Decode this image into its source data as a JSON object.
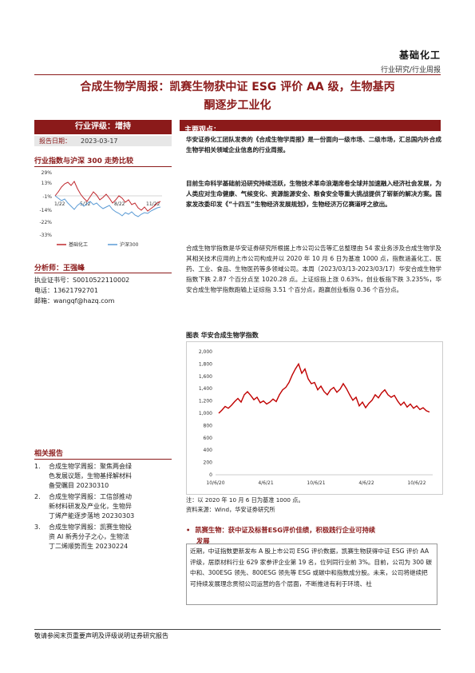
{
  "header": {
    "sector": "基础化工",
    "subsector": "行业研究/行业周报"
  },
  "title": {
    "line1": "合成生物学周报：凯赛生物获中证 ESG 评价 AA 级，生物基丙",
    "line2": "酮逐步工业化"
  },
  "rating": {
    "label": "行业评级：增持",
    "date_label": "报告日期：",
    "date_value": "2023-03-17"
  },
  "trend_chart": {
    "heading": "行业指数与沪深 300 走势比较",
    "y_ticks": [
      "29%",
      "13%",
      "-1%",
      "-14%",
      "-22%",
      "-33%"
    ],
    "x_ticks": [
      "1/22",
      "5/22",
      "8/22",
      "11/22"
    ],
    "legend": [
      "基础化工",
      "沪深300"
    ],
    "colors": {
      "sector": "#C0282E",
      "hs300": "#5B9BD5"
    }
  },
  "analyst": {
    "heading": "分析师：王强峰",
    "cert": "执业证书号：S0010522110002",
    "phone": "电话：13621792701",
    "email": "邮箱：wangqf@hazq.com"
  },
  "related": {
    "heading": "相关报告",
    "items": [
      [
        "1.",
        "合成生物学周报：聚焦两会绿",
        "色发展议题，生物基择解材料",
        "备受瞩目 20230310"
      ],
      [
        "2.",
        "合成生物学周报：工信部推动",
        "新材料研发及产业化，生物异",
        "丁烯产能逐步落地 20230303"
      ],
      [
        "3.",
        "合成生物学周报：凯赛生物投",
        "资 AI 新秀分子之心，生物法",
        "丁二烯顺势而生 20230224"
      ]
    ]
  },
  "main": {
    "heading": "主要观点：",
    "p1": "华安证券化工团队发表的《合成生物学周报》是一份面向一级市场、二级市场，汇总国内外合成生物学相关领域企业信息的行业周报。",
    "p2": "目前生命科学基础前沿研究持续活跃，生物技术革命浪潮席卷全球并加速融入经济社会发展，为人类应对生命健康、气候变化、资源能源安全、粮食安全等重大挑战提供了崭新的解决方案。国家发改委印发《“十四五”生物经济发展规划》，生物经济万亿赛道呼之欲出。",
    "p3": "合成生物学指数是华安证券研究所根据上市公司公告等汇总整理由 54 家业务涉及合成生物学及其相关技术应用的上市公司构成并以 2020 年 10 月 6 日为基准 1000 点，指数涵盖化工、医药、工业、食品、生物医药等多领域公司。本周（2023/03/13-2023/03/17）华安合成生物学指数下跌 2.87 个百分点至 1020.28 点。上证综指上涨 0.63%，创业板指下跌 3.235%，华安合成生物学指数跑输上证综指 3.51 个百分点，跑赢创业板指 0.36 个百分点。"
  },
  "figure": {
    "title": "图表 华安合成生物学指数",
    "note": "注：以 2020 年 10 月 6 日为基准 1000 点。",
    "source": "资料来源：Wind，华安证券研究所"
  },
  "chart_data": {
    "type": "line",
    "title": "",
    "xlabel": "",
    "ylabel": "",
    "ylim": [
      0,
      2000
    ],
    "y_ticks": [
      "2,000",
      "1,800",
      "1,600",
      "1,400",
      "1,200",
      "1,000",
      "800",
      "600",
      "400",
      "200",
      "0"
    ],
    "x_tick_labels": [
      "10/6/20",
      "4/6/21",
      "10/6/21",
      "4/6/22",
      "10/6/22"
    ],
    "color": "#C00000",
    "series": [
      {
        "values": [
          1000,
          1050,
          1110,
          1080,
          1130,
          1190,
          1240,
          1180,
          1300,
          1350,
          1290,
          1220,
          1260,
          1170,
          1200,
          1150,
          1180,
          1230,
          1190,
          1300,
          1380,
          1420,
          1500,
          1620,
          1720,
          1800,
          1650,
          1720,
          1560,
          1480,
          1500,
          1380,
          1440,
          1350,
          1300,
          1380,
          1420,
          1340,
          1390,
          1480,
          1400,
          1300,
          1210,
          1260,
          1120,
          1180,
          1090,
          1160,
          1210,
          1300,
          1250,
          1330,
          1380,
          1300,
          1260,
          1290,
          1200,
          1130,
          1180,
          1100,
          1150,
          1080,
          1120,
          1060,
          1090,
          1040,
          1020
        ]
      }
    ]
  },
  "bullet": {
    "marker": "•",
    "line1": "凯赛生物：获中证及标普ESG评价佳绩，积极践行企业可持续",
    "line2": "发展"
  },
  "box": {
    "text": "近期，中证指数更新发布 A 股上市公司 ESG 评价数据，凯赛生物获得中证 ESG 评价 AA 评级，居原材料行业 629 家参评企业第 19 名，位列同行业前 3%。目前，公司为 300 碳中和、300ESG 领先、800ESG 领先等 ESG 或碳中和指数成分股。未来，公司将继续把可持续发展理念贯彻公司运营的各个层面，不断推进有利于环境、社"
  },
  "footer": {
    "text": "敬请参阅末页重要声明及评级说明证券研究报告"
  }
}
